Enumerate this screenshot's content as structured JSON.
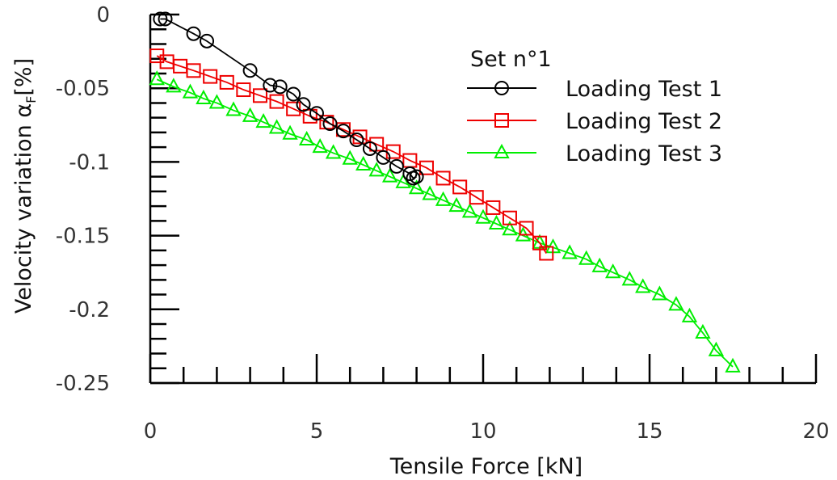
{
  "chart_data": {
    "type": "line",
    "xlabel": "Tensile Force [kN]",
    "ylabel": "Velocity variation α",
    "ylabel_subscript": "F",
    "ylabel_unit": "[%]",
    "xlim": [
      0,
      20
    ],
    "ylim": [
      -0.25,
      0
    ],
    "xticks": [
      "0",
      "5",
      "10",
      "15",
      "20"
    ],
    "yticks": [
      "0",
      "-0.05",
      "-0.1",
      "-0.15",
      "-0.2",
      "-0.25"
    ],
    "legend": {
      "title": "Set n°1",
      "position": "top-right"
    },
    "grid": false,
    "series": [
      {
        "name": "Loading Test 1",
        "color": "#000000",
        "marker": "circle",
        "x": [
          0.3,
          0.45,
          1.3,
          1.7,
          3.0,
          3.6,
          3.9,
          4.3,
          4.6,
          5.0,
          5.4,
          5.8,
          6.2,
          6.6,
          7.0,
          7.4,
          7.8,
          7.9,
          8.0
        ],
        "y": [
          -0.003,
          -0.003,
          -0.013,
          -0.018,
          -0.038,
          -0.048,
          -0.049,
          -0.054,
          -0.061,
          -0.067,
          -0.074,
          -0.079,
          -0.085,
          -0.091,
          -0.097,
          -0.103,
          -0.108,
          -0.111,
          -0.11
        ]
      },
      {
        "name": "Loading Test 2",
        "color": "#ee0000",
        "marker": "square",
        "x": [
          0.2,
          0.5,
          0.9,
          1.3,
          1.8,
          2.3,
          2.8,
          3.3,
          3.8,
          4.3,
          4.8,
          5.3,
          5.8,
          6.3,
          6.8,
          7.3,
          7.8,
          8.3,
          8.8,
          9.3,
          9.8,
          10.3,
          10.8,
          11.3,
          11.7,
          11.9
        ],
        "y": [
          -0.028,
          -0.032,
          -0.035,
          -0.038,
          -0.042,
          -0.046,
          -0.051,
          -0.055,
          -0.059,
          -0.064,
          -0.069,
          -0.073,
          -0.078,
          -0.083,
          -0.088,
          -0.093,
          -0.099,
          -0.104,
          -0.111,
          -0.117,
          -0.124,
          -0.131,
          -0.138,
          -0.145,
          -0.155,
          -0.162
        ]
      },
      {
        "name": "Loading Test 3",
        "color": "#00ee00",
        "marker": "triangle",
        "x": [
          0.2,
          0.7,
          1.2,
          1.6,
          2.0,
          2.5,
          3.0,
          3.4,
          3.8,
          4.2,
          4.7,
          5.1,
          5.5,
          6.0,
          6.4,
          6.8,
          7.2,
          7.6,
          8.0,
          8.4,
          8.8,
          9.2,
          9.6,
          10.0,
          10.4,
          10.8,
          11.2,
          11.7,
          12.1,
          12.6,
          13.1,
          13.5,
          13.9,
          14.4,
          14.8,
          15.3,
          15.8,
          16.2,
          16.6,
          17.0,
          17.5
        ],
        "y": [
          -0.044,
          -0.049,
          -0.053,
          -0.057,
          -0.06,
          -0.065,
          -0.069,
          -0.073,
          -0.077,
          -0.081,
          -0.085,
          -0.09,
          -0.094,
          -0.098,
          -0.102,
          -0.106,
          -0.11,
          -0.114,
          -0.118,
          -0.122,
          -0.126,
          -0.13,
          -0.134,
          -0.138,
          -0.142,
          -0.146,
          -0.15,
          -0.155,
          -0.158,
          -0.162,
          -0.166,
          -0.171,
          -0.175,
          -0.18,
          -0.185,
          -0.19,
          -0.197,
          -0.205,
          -0.216,
          -0.228,
          -0.239
        ]
      }
    ]
  }
}
